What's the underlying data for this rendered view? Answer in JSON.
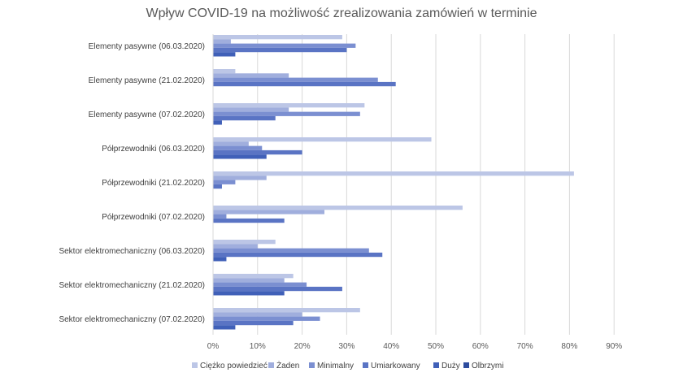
{
  "chart_data": {
    "type": "bar",
    "orientation": "horizontal",
    "title": "Wpływ COVID-19 na możliwość zrealizowania zamówień w terminie",
    "xlabel": "",
    "ylabel": "",
    "xlim": [
      0,
      90
    ],
    "x_ticks": [
      "0%",
      "10%",
      "20%",
      "30%",
      "40%",
      "50%",
      "60%",
      "70%",
      "80%",
      "90%"
    ],
    "grid": "vertical",
    "legend_position": "bottom",
    "categories": [
      "Elementy pasywne (06.03.2020)",
      "Elementy pasywne (21.02.2020)",
      "Elementy pasywne (07.02.2020)",
      "Półprzewodniki (06.03.2020)",
      "Półprzewodniki (21.02.2020)",
      "Półprzewodniki (07.02.2020)",
      "Sektor elektromechaniczny (06.03.2020)",
      "Sektor elektromechaniczny (21.02.2020)",
      "Sektor elektromechaniczny (07.02.2020)"
    ],
    "series": [
      {
        "name": "Ciężko powiedzieć",
        "color": "#bcc6e6",
        "values": [
          29,
          5,
          34,
          49,
          81,
          56,
          14,
          18,
          33
        ]
      },
      {
        "name": "Żaden",
        "color": "#a0aedd",
        "values": [
          4,
          17,
          17,
          8,
          12,
          25,
          10,
          16,
          20
        ]
      },
      {
        "name": "Minimalny",
        "color": "#7b8fd1",
        "values": [
          32,
          37,
          33,
          11,
          5,
          3,
          35,
          21,
          24
        ]
      },
      {
        "name": "Umiarkowany",
        "color": "#5a74c4",
        "values": [
          30,
          41,
          14,
          20,
          2,
          16,
          38,
          29,
          18
        ]
      },
      {
        "name": "Duży",
        "color": "#4060b8",
        "values": [
          5,
          0,
          2,
          12,
          0,
          0,
          3,
          16,
          5
        ]
      },
      {
        "name": "Olbrzymi",
        "color": "#2e4c9e",
        "values": [
          0,
          0,
          0,
          0,
          0,
          0,
          0,
          0,
          0
        ]
      }
    ]
  }
}
